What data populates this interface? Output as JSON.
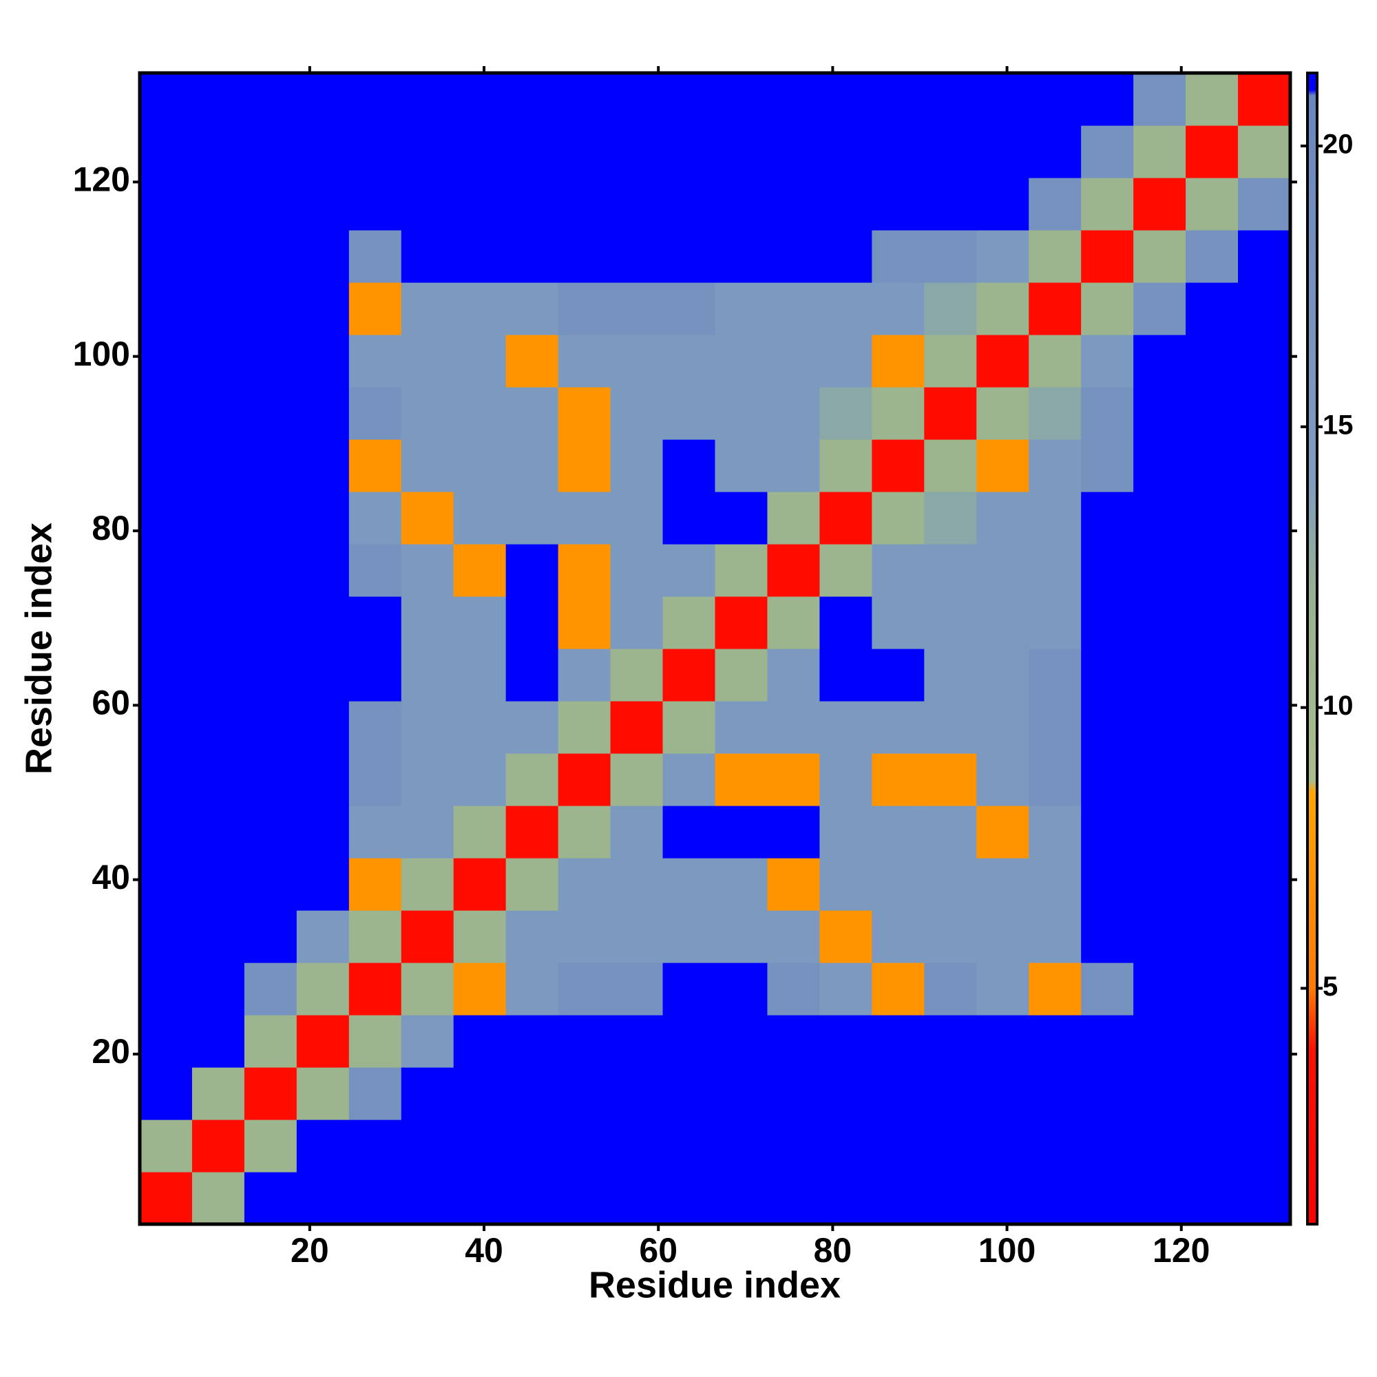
{
  "chart_data": {
    "type": "heatmap",
    "xlabel": "Residue index",
    "ylabel": "Residue index",
    "xlim": [
      0.5,
      132.5
    ],
    "ylim": [
      0.5,
      132.5
    ],
    "xticks": [
      20,
      40,
      60,
      80,
      100,
      120
    ],
    "yticks": [
      20,
      40,
      60,
      80,
      100,
      120
    ],
    "bins": [
      0.5,
      6.5,
      12.5,
      18.5,
      24.5,
      30.5,
      36.5,
      42.5,
      48.5,
      54.5,
      60.5,
      66.5,
      72.5,
      78.5,
      84.5,
      90.5,
      96.5,
      102.5,
      108.5,
      114.5,
      120.5,
      126.5,
      132.5
    ],
    "zlim": [
      0.8,
      21.3
    ],
    "zticks": [
      5,
      10,
      15,
      20
    ],
    "colorscale": [
      [
        0.8,
        "#ff0000"
      ],
      [
        3.9,
        "#ff1000"
      ],
      [
        5,
        "#ff7a00"
      ],
      [
        8.5,
        "#ffa500"
      ],
      [
        8.7,
        "#a8bd8c"
      ],
      [
        12,
        "#97b290"
      ],
      [
        14,
        "#7f9dbf"
      ],
      [
        20.9,
        "#6a86c0"
      ],
      [
        21,
        "#0000ff"
      ],
      [
        21.3,
        "#0000ff"
      ]
    ],
    "z": [
      [
        3,
        11,
        21,
        21,
        21,
        21,
        21,
        21,
        21,
        21,
        21,
        21,
        21,
        21,
        21,
        21,
        21,
        21,
        21,
        21,
        21,
        21
      ],
      [
        11,
        3,
        11,
        21,
        21,
        21,
        21,
        21,
        21,
        21,
        21,
        21,
        21,
        21,
        21,
        21,
        21,
        21,
        21,
        21,
        21,
        21
      ],
      [
        21,
        11,
        3,
        11,
        17,
        21,
        21,
        21,
        21,
        21,
        21,
        21,
        21,
        21,
        21,
        21,
        21,
        21,
        21,
        21,
        21,
        21
      ],
      [
        21,
        21,
        11,
        3,
        11,
        15,
        21,
        21,
        21,
        21,
        21,
        21,
        21,
        21,
        21,
        21,
        21,
        21,
        21,
        21,
        21,
        21
      ],
      [
        21,
        21,
        17,
        11,
        3,
        11,
        7,
        15,
        17,
        17,
        21,
        21,
        17,
        15,
        7,
        17,
        15,
        7,
        17,
        21,
        21,
        21
      ],
      [
        21,
        21,
        21,
        15,
        11,
        3,
        11,
        15,
        15,
        15,
        15,
        15,
        15,
        7,
        15,
        15,
        15,
        15,
        21,
        21,
        21,
        21
      ],
      [
        21,
        21,
        21,
        21,
        7,
        11,
        3,
        11,
        15,
        15,
        15,
        15,
        7,
        15,
        15,
        15,
        15,
        15,
        21,
        21,
        21,
        21
      ],
      [
        21,
        21,
        21,
        21,
        15,
        15,
        11,
        3,
        11,
        15,
        21,
        21,
        21,
        15,
        15,
        15,
        7,
        15,
        21,
        21,
        21,
        21
      ],
      [
        21,
        21,
        21,
        21,
        17,
        15,
        15,
        11,
        3,
        11,
        15,
        7,
        7,
        15,
        7,
        7,
        15,
        17,
        21,
        21,
        21,
        21
      ],
      [
        21,
        21,
        21,
        21,
        17,
        15,
        15,
        15,
        11,
        3,
        11,
        15,
        15,
        15,
        15,
        15,
        15,
        17,
        21,
        21,
        21,
        21
      ],
      [
        21,
        21,
        21,
        21,
        21,
        15,
        15,
        21,
        15,
        11,
        3,
        11,
        15,
        21,
        21,
        15,
        15,
        17,
        21,
        21,
        21,
        21
      ],
      [
        21,
        21,
        21,
        21,
        21,
        15,
        15,
        21,
        7,
        15,
        11,
        3,
        11,
        21,
        15,
        15,
        15,
        15,
        21,
        21,
        21,
        21
      ],
      [
        21,
        21,
        21,
        21,
        17,
        15,
        7,
        21,
        7,
        15,
        15,
        11,
        3,
        11,
        15,
        15,
        15,
        15,
        21,
        21,
        21,
        21
      ],
      [
        21,
        21,
        21,
        21,
        15,
        7,
        15,
        15,
        15,
        15,
        21,
        21,
        11,
        3,
        11,
        13,
        15,
        15,
        21,
        21,
        21,
        21
      ],
      [
        21,
        21,
        21,
        21,
        7,
        15,
        15,
        15,
        7,
        15,
        21,
        15,
        15,
        11,
        3,
        11,
        7,
        15,
        17,
        21,
        21,
        21
      ],
      [
        21,
        21,
        21,
        21,
        17,
        15,
        15,
        15,
        7,
        15,
        15,
        15,
        15,
        13,
        11,
        3,
        11,
        13,
        17,
        21,
        21,
        21
      ],
      [
        21,
        21,
        21,
        21,
        15,
        15,
        15,
        7,
        15,
        15,
        15,
        15,
        15,
        15,
        7,
        11,
        3,
        11,
        15,
        21,
        21,
        21
      ],
      [
        21,
        21,
        21,
        21,
        7,
        15,
        15,
        15,
        17,
        17,
        17,
        15,
        15,
        15,
        15,
        13,
        11,
        3,
        11,
        17,
        21,
        21
      ],
      [
        21,
        21,
        21,
        21,
        17,
        21,
        21,
        21,
        21,
        21,
        21,
        21,
        21,
        21,
        17,
        17,
        15,
        11,
        3,
        11,
        17,
        21
      ],
      [
        21,
        21,
        21,
        21,
        21,
        21,
        21,
        21,
        21,
        21,
        21,
        21,
        21,
        21,
        21,
        21,
        21,
        17,
        11,
        3,
        11,
        17
      ],
      [
        21,
        21,
        21,
        21,
        21,
        21,
        21,
        21,
        21,
        21,
        21,
        21,
        21,
        21,
        21,
        21,
        21,
        21,
        17,
        11,
        3,
        11
      ],
      [
        21,
        21,
        21,
        21,
        21,
        21,
        21,
        21,
        21,
        21,
        21,
        21,
        21,
        21,
        21,
        21,
        21,
        21,
        21,
        17,
        11,
        3
      ]
    ]
  }
}
